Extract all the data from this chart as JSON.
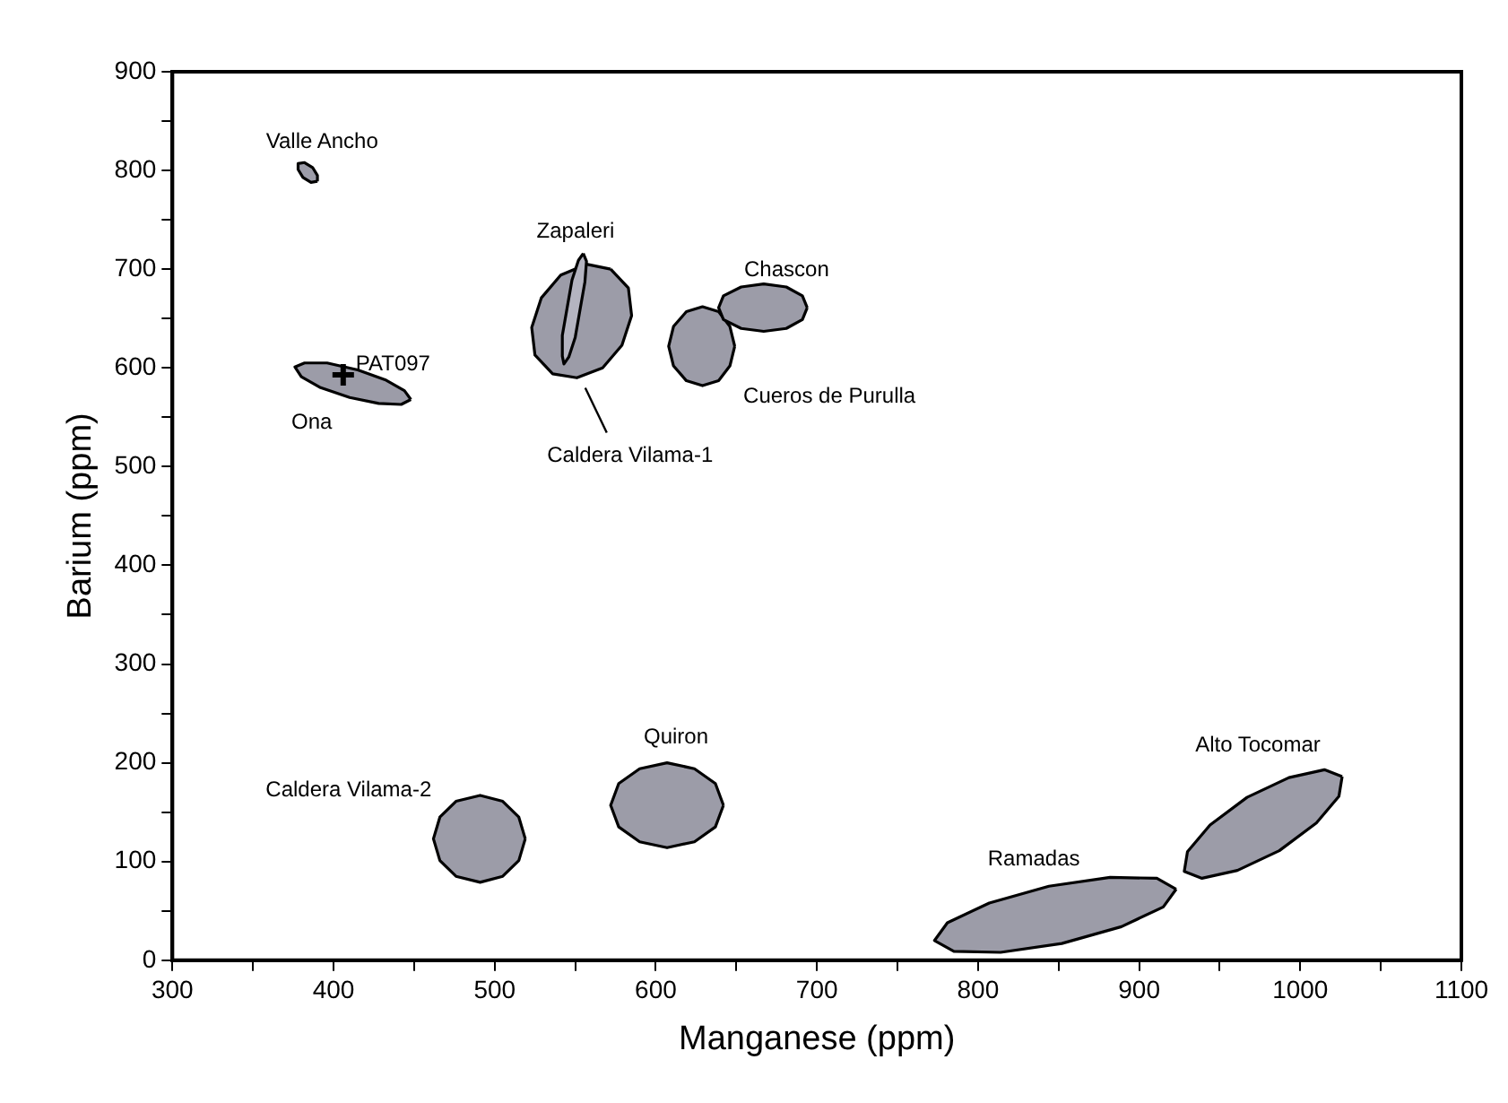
{
  "chart_data": {
    "type": "area",
    "xlabel": "Manganese (ppm)",
    "ylabel": "Barium (ppm)",
    "xlim": [
      300,
      1100
    ],
    "ylim": [
      0,
      900
    ],
    "xticks": [
      300,
      {
        "value": 350,
        "label": null
      },
      400,
      {
        "value": 450,
        "label": null
      },
      500,
      {
        "value": 550,
        "label": null
      },
      600,
      {
        "value": 650,
        "label": null
      },
      700,
      {
        "value": 750,
        "label": null
      },
      800,
      {
        "value": 850,
        "label": null
      },
      900,
      {
        "value": 950,
        "label": null
      },
      1000,
      {
        "value": 1050,
        "label": null
      },
      1100
    ],
    "yticks": [
      0,
      {
        "value": 50,
        "label": null
      },
      100,
      {
        "value": 150,
        "label": null
      },
      200,
      {
        "value": 250,
        "label": null
      },
      300,
      {
        "value": 350,
        "label": null
      },
      400,
      {
        "value": 450,
        "label": null
      },
      500,
      {
        "value": 550,
        "label": null
      },
      600,
      {
        "value": 650,
        "label": null
      },
      700,
      {
        "value": 750,
        "label": null
      },
      800,
      {
        "value": 850,
        "label": null
      },
      900
    ],
    "series": [
      {
        "name": "Valle Ancho",
        "color": "#9c9ca8",
        "x": [
          390,
          390,
          387,
          382,
          378,
          378,
          381,
          386
        ],
        "values": [
          789,
          795,
          803,
          808,
          807,
          801,
          793,
          788
        ]
      },
      {
        "name": "Ona",
        "color": "#9c9ca8",
        "x": [
          448,
          444,
          432,
          415,
          396,
          382,
          376,
          380,
          392,
          410,
          428,
          442
        ],
        "values": [
          568,
          577,
          588,
          598,
          605,
          605,
          601,
          591,
          580,
          570,
          564,
          563
        ]
      },
      {
        "name": "Caldera Vilama-1",
        "color": "#9c9ca8",
        "x": [
          572,
          583,
          585,
          579,
          567,
          551,
          536,
          525,
          523,
          529,
          541,
          557
        ],
        "values": [
          700,
          681,
          653,
          623,
          600,
          590,
          594,
          613,
          641,
          671,
          694,
          705
        ]
      },
      {
        "name": "Zapaleri",
        "color": "#b4b4c0",
        "x": [
          555,
          557,
          556,
          553,
          550,
          546,
          543,
          542,
          542,
          545,
          548,
          552
        ],
        "values": [
          716,
          708,
          687,
          659,
          631,
          611,
          604,
          612,
          633,
          661,
          689,
          709
        ]
      },
      {
        "name": "Cueros de Purulla",
        "color": "#9c9ca8",
        "x": [
          649,
          646,
          639,
          629,
          619,
          611,
          608,
          611,
          619,
          629,
          639,
          646
        ],
        "values": [
          622,
          642,
          657,
          662,
          657,
          642,
          622,
          602,
          587,
          582,
          587,
          602
        ]
      },
      {
        "name": "Chascon",
        "color": "#9c9ca8",
        "x": [
          694,
          691,
          681,
          667,
          653,
          642,
          639,
          642,
          653,
          667,
          681,
          691
        ],
        "values": [
          661,
          673,
          682,
          685,
          682,
          673,
          661,
          649,
          640,
          637,
          640,
          649
        ]
      },
      {
        "name": "Caldera Vilama-2",
        "color": "#9c9ca8",
        "x": [
          519,
          515,
          505,
          491,
          476,
          466,
          462,
          466,
          476,
          491,
          505,
          515
        ],
        "values": [
          123,
          145,
          161,
          167,
          161,
          145,
          123,
          101,
          85,
          79,
          85,
          101
        ]
      },
      {
        "name": "Quiron",
        "color": "#9c9ca8",
        "x": [
          642,
          637,
          624,
          607,
          590,
          577,
          572,
          577,
          590,
          607,
          624,
          637
        ],
        "values": [
          157,
          179,
          194,
          200,
          194,
          179,
          157,
          135,
          120,
          114,
          120,
          135
        ]
      },
      {
        "name": "Ramadas",
        "color": "#9c9ca8",
        "x": [
          923,
          911,
          882,
          844,
          807,
          781,
          773,
          785,
          814,
          852,
          889,
          915
        ],
        "values": [
          72,
          83,
          84,
          75,
          58,
          38,
          20,
          9,
          8,
          17,
          34,
          54
        ]
      },
      {
        "name": "Alto Tocomar",
        "color": "#9c9ca8",
        "x": [
          1026,
          1015,
          993,
          967,
          944,
          930,
          928,
          939,
          961,
          987,
          1010,
          1024
        ],
        "values": [
          186,
          193,
          185,
          165,
          137,
          110,
          90,
          83,
          91,
          111,
          139,
          166
        ]
      },
      {
        "type": "scatter",
        "name": "PAT097",
        "marker": "cross",
        "color": "#000000",
        "x": [
          406
        ],
        "values": [
          593
        ]
      }
    ]
  }
}
